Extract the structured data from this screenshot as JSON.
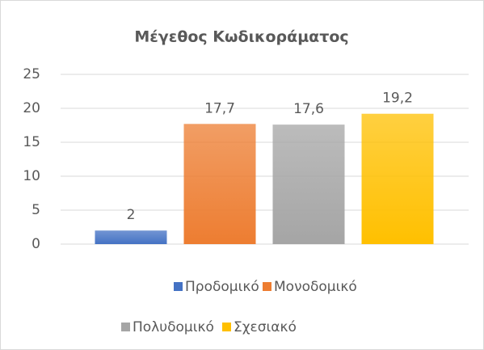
{
  "chart_data": {
    "type": "bar",
    "title": "Μέγεθος Κωδικοράματος",
    "categories": [
      "Προδομικό",
      "Μονοδομικό",
      "Πολυδομικό",
      "Σχεσιακό"
    ],
    "values": [
      2,
      17.7,
      17.6,
      19.2
    ],
    "value_labels": [
      "2",
      "17,7",
      "17,6",
      "19,2"
    ],
    "colors": [
      "#4472c4",
      "#ed7d31",
      "#a5a5a5",
      "#ffc000"
    ],
    "ylim": [
      0,
      25
    ],
    "yticks": [
      0,
      5,
      10,
      15,
      20,
      25
    ],
    "grid": true,
    "legend": "bottom"
  }
}
